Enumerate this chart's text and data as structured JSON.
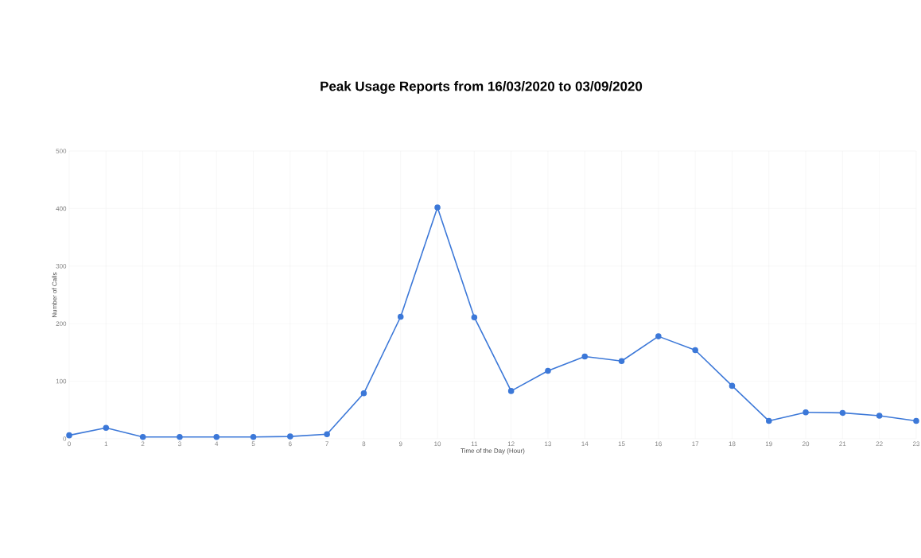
{
  "chart_data": {
    "type": "line",
    "title": "Peak Usage Reports from 16/03/2020 to 03/09/2020",
    "xlabel": "Time of the Day (Hour)",
    "ylabel": "Number of Calls",
    "x": [
      0,
      1,
      2,
      3,
      4,
      5,
      6,
      7,
      8,
      9,
      10,
      11,
      12,
      13,
      14,
      15,
      16,
      17,
      18,
      19,
      20,
      21,
      22,
      23
    ],
    "series": [
      {
        "color": "#3c78d8",
        "values": [
          6,
          19,
          3,
          3,
          3,
          3,
          4,
          8,
          79,
          212,
          402,
          211,
          83,
          118,
          143,
          135,
          178,
          154,
          92,
          31,
          46,
          45,
          40,
          31
        ]
      }
    ],
    "xlim": [
      0,
      23
    ],
    "xticks": [
      0,
      1,
      2,
      3,
      4,
      5,
      6,
      7,
      8,
      9,
      10,
      11,
      12,
      13,
      14,
      15,
      16,
      17,
      18,
      19,
      20,
      21,
      22,
      23
    ],
    "ylim": [
      0,
      500
    ],
    "yticks": [
      0,
      100,
      200,
      300,
      400,
      500
    ],
    "grid": true,
    "marker": "circle",
    "line_style": "solid"
  }
}
